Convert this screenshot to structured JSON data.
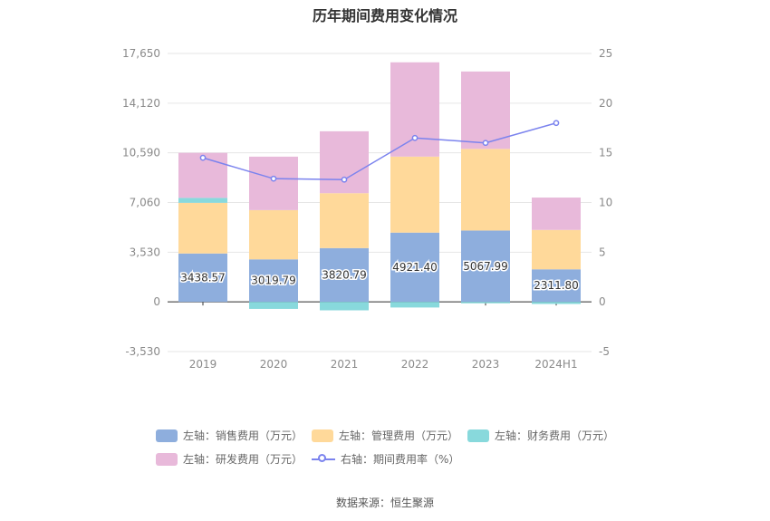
{
  "title": "历年期间费用变化情况",
  "source": "数据来源：恒生聚源",
  "legend": [
    {
      "label": "左轴：销售费用（万元）",
      "color": "#8eaedd",
      "kind": "bar"
    },
    {
      "label": "左轴：管理费用（万元）",
      "color": "#ffd99a",
      "kind": "bar"
    },
    {
      "label": "左轴：财务费用（万元）",
      "color": "#88d9dc",
      "kind": "bar"
    },
    {
      "label": "左轴：研发费用（万元）",
      "color": "#e8b9da",
      "kind": "bar"
    },
    {
      "label": "右轴：期间费用率（%）",
      "color": "#7b83ee",
      "kind": "line"
    }
  ],
  "chart_data": {
    "type": "bar",
    "stacked": true,
    "categories": [
      "2019",
      "2020",
      "2021",
      "2022",
      "2023",
      "2024H1"
    ],
    "left_axis": {
      "ticks": [
        "17,650",
        "14,120",
        "10,590",
        "7,060",
        "3,530",
        "0",
        "-3,530"
      ],
      "ylim": [
        -3530,
        17650
      ]
    },
    "right_axis": {
      "ticks": [
        "25",
        "20",
        "15",
        "10",
        "5",
        "0",
        "-5"
      ],
      "ylim": [
        -5,
        25
      ]
    },
    "grid": true,
    "legend_position": "bottom",
    "series": [
      {
        "name": "左轴：销售费用（万元）",
        "axis": "left",
        "color": "#8eaedd",
        "values": [
          3438.57,
          3019.79,
          3820.79,
          4921.4,
          5067.99,
          2311.8
        ],
        "labels": [
          "3438.57",
          "3019.79",
          "3820.79",
          "4921.40",
          "5067.99",
          "2311.80"
        ]
      },
      {
        "name": "左轴：管理费用（万元）",
        "axis": "left",
        "color": "#ffd99a",
        "values": [
          3600,
          3500,
          3900,
          5400,
          5800,
          2800
        ]
      },
      {
        "name": "左轴：财务费用（万元）",
        "axis": "left",
        "color": "#88d9dc",
        "values": [
          350,
          -500,
          -600,
          -400,
          -100,
          -150
        ]
      },
      {
        "name": "左轴：研发费用（万元）",
        "axis": "left",
        "color": "#e8b9da",
        "values": [
          3200,
          3800,
          4400,
          6700,
          5500,
          2300
        ]
      },
      {
        "name": "右轴：期间费用率（%）",
        "axis": "right",
        "type": "line",
        "color": "#7b83ee",
        "values": [
          14.5,
          12.4,
          12.3,
          16.5,
          16.0,
          18.0
        ]
      }
    ]
  }
}
